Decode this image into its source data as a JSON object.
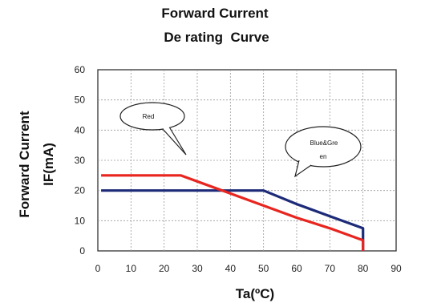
{
  "chart_data": {
    "type": "line",
    "title_line1": "Forward Current",
    "title_line2": "De rating  Curve",
    "ylabel_line1": "Forward Current",
    "ylabel_line2": "IF(mA)",
    "xlabel": "Ta(ºC)",
    "xlim": [
      0,
      90
    ],
    "ylim": [
      0,
      60
    ],
    "xticks": [
      0,
      10,
      20,
      30,
      40,
      50,
      60,
      70,
      80,
      90
    ],
    "yticks": [
      0,
      10,
      20,
      30,
      40,
      50,
      60
    ],
    "grid": true,
    "series": [
      {
        "name": "Red",
        "color": "#e8251f",
        "x": [
          1,
          25,
          40,
          50,
          60,
          70,
          80,
          80
        ],
        "y": [
          25,
          25,
          19,
          15,
          11,
          7.5,
          3.5,
          0
        ]
      },
      {
        "name": "Blue&Green",
        "color": "#1c2a78",
        "x": [
          1,
          50,
          60,
          70,
          80,
          80
        ],
        "y": [
          20,
          20,
          15.5,
          11.5,
          7.5,
          0
        ]
      }
    ],
    "annotations": [
      {
        "label": "Red",
        "series": "Red"
      },
      {
        "label_line1": "Blue&Gre",
        "label_line2": "en",
        "series": "Blue&Green"
      }
    ]
  }
}
